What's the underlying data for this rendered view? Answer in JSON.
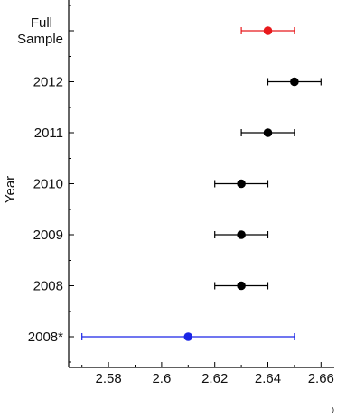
{
  "chart_data": {
    "type": "scatter",
    "subtype": "forest-plot",
    "title": "",
    "ylabel": "Year",
    "xlabel": "",
    "categories": [
      "Full Sample",
      "2012",
      "2011",
      "2010",
      "2009",
      "2008",
      "2008*"
    ],
    "points": [
      {
        "label": "Full Sample",
        "value": 2.64,
        "ci_low": 2.63,
        "ci_high": 2.65,
        "color": "#e8191c"
      },
      {
        "label": "2012",
        "value": 2.65,
        "ci_low": 2.64,
        "ci_high": 2.66,
        "color": "#000000"
      },
      {
        "label": "2011",
        "value": 2.64,
        "ci_low": 2.63,
        "ci_high": 2.65,
        "color": "#000000"
      },
      {
        "label": "2010",
        "value": 2.63,
        "ci_low": 2.62,
        "ci_high": 2.64,
        "color": "#000000"
      },
      {
        "label": "2009",
        "value": 2.63,
        "ci_low": 2.62,
        "ci_high": 2.64,
        "color": "#000000"
      },
      {
        "label": "2008",
        "value": 2.63,
        "ci_low": 2.62,
        "ci_high": 2.64,
        "color": "#000000"
      },
      {
        "label": "2008*",
        "value": 2.61,
        "ci_low": 2.57,
        "ci_high": 2.65,
        "color": "#1a25e6"
      }
    ],
    "xlim": [
      2.565,
      2.665
    ],
    "xticks": [
      "2.58",
      "2.6",
      "2.62",
      "2.64",
      "2.66"
    ],
    "grid": false,
    "legend": "none"
  }
}
